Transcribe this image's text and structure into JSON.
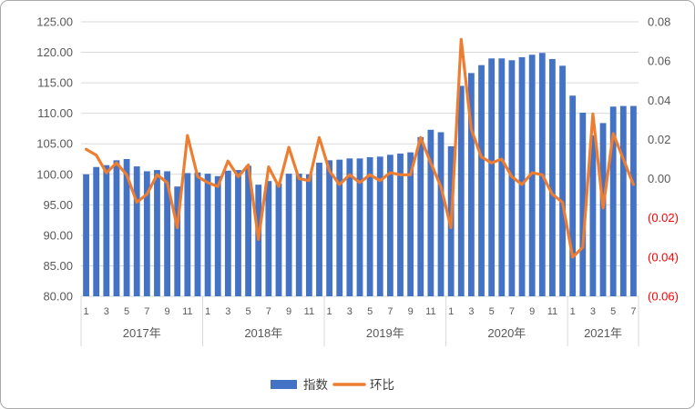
{
  "chart_data": {
    "type": "combo-bar-line",
    "title": "",
    "legend_position": "bottom",
    "grid": "horizontal",
    "left_axis": {
      "min": 80,
      "max": 125,
      "step": 5,
      "format": "two-decimals",
      "tick_labels": [
        "80.00",
        "85.00",
        "90.00",
        "95.00",
        "100.00",
        "105.00",
        "110.00",
        "115.00",
        "120.00",
        "125.00"
      ]
    },
    "right_axis": {
      "min": -0.06,
      "max": 0.08,
      "step": 0.02,
      "format": "two-decimals-red-parentheses-negative",
      "tick_labels": [
        "(0.06)",
        "(0.04)",
        "(0.02)",
        "0.00",
        "0.02",
        "0.04",
        "0.06",
        "0.08"
      ]
    },
    "x": {
      "years": [
        {
          "label": "2017年",
          "n_months": 12
        },
        {
          "label": "2018年",
          "n_months": 12
        },
        {
          "label": "2019年",
          "n_months": 12
        },
        {
          "label": "2020年",
          "n_months": 12
        },
        {
          "label": "2021年",
          "n_months": 7
        }
      ],
      "month_labels_shown": [
        "1",
        "3",
        "5",
        "7",
        "9",
        "11"
      ]
    },
    "series": [
      {
        "name": "指数",
        "type": "bar",
        "axis": "left",
        "color": "#4472C4",
        "values": [
          100.0,
          101.2,
          101.5,
          102.3,
          102.5,
          101.3,
          100.5,
          100.7,
          100.5,
          98.0,
          100.2,
          100.3,
          100.1,
          99.7,
          100.6,
          100.7,
          101.4,
          98.3,
          98.9,
          98.5,
          100.1,
          100.1,
          100.0,
          101.9,
          102.3,
          102.4,
          102.6,
          102.6,
          102.8,
          102.9,
          103.2,
          103.4,
          103.6,
          106.1,
          107.3,
          106.9,
          104.6,
          114.5,
          116.6,
          117.9,
          119.0,
          119.0,
          118.7,
          119.2,
          119.6,
          119.9,
          118.9,
          117.8,
          112.9,
          110.1,
          106.4,
          108.4,
          111.1,
          111.2,
          111.2
        ]
      },
      {
        "name": "环比",
        "type": "line",
        "axis": "right",
        "color": "#ED7D31",
        "values": [
          0.015,
          0.012,
          0.003,
          0.008,
          0.002,
          -0.012,
          -0.008,
          0.002,
          -0.002,
          -0.025,
          0.022,
          0.001,
          -0.002,
          -0.004,
          0.009,
          0.001,
          0.007,
          -0.031,
          0.006,
          -0.004,
          0.016,
          0.0,
          -0.001,
          0.021,
          0.004,
          -0.003,
          0.002,
          -0.002,
          0.002,
          -0.001,
          0.003,
          0.002,
          0.002,
          0.021,
          0.008,
          -0.004,
          -0.025,
          0.071,
          0.025,
          0.011,
          0.008,
          0.01,
          0.001,
          -0.003,
          0.003,
          0.002,
          -0.008,
          -0.012,
          -0.04,
          -0.035,
          0.033,
          -0.015,
          0.023,
          0.01,
          -0.003
        ]
      }
    ],
    "colors": {
      "bar": "#4472C4",
      "line": "#ED7D31",
      "gridline": "#D9D9D9",
      "axis_text": "#595959",
      "negative_axis_text": "#FF0000"
    }
  }
}
